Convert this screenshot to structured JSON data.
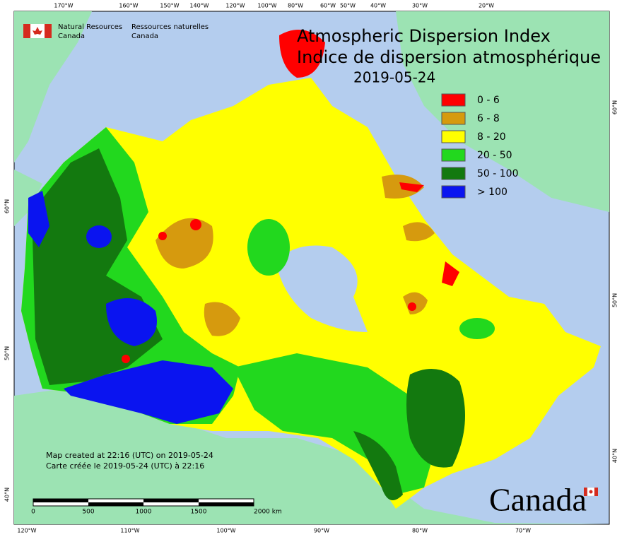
{
  "agency": {
    "en": [
      "Natural Resources",
      "Canada"
    ],
    "fr": [
      "Ressources naturelles",
      "Canada"
    ]
  },
  "title": {
    "line1": "Atmospheric Dispersion Index",
    "line2": "Indice de dispersion atmosphérique",
    "date": "2019-05-24"
  },
  "legend": {
    "items": [
      {
        "label": "0 - 6",
        "color": "#ff0000"
      },
      {
        "label": "6 - 8",
        "color": "#d69a0e"
      },
      {
        "label": "8 - 20",
        "color": "#ffff00"
      },
      {
        "label": "20 - 50",
        "color": "#22d81e"
      },
      {
        "label": "50 - 100",
        "color": "#13790f"
      },
      {
        "label": "> 100",
        "color": "#0a14f0"
      }
    ]
  },
  "graticule": {
    "top": [
      "170°W",
      "160°W",
      "150°W",
      "140°W",
      "120°W",
      "100°W",
      "80°W",
      "60°W",
      "50°W",
      "40°W",
      "30°W",
      "20°W"
    ],
    "bottom": [
      "120°W",
      "110°W",
      "100°W",
      "90°W",
      "80°W",
      "70°W"
    ],
    "left": [
      "60°N",
      "50°N",
      "40°N"
    ],
    "right": [
      "60°N",
      "50°N",
      "40°N"
    ]
  },
  "credits": {
    "created_en": "Map created at 22:16 (UTC) on 2019-05-24",
    "created_fr": "Carte créée le 2019-05-24 (UTC) à 22:16"
  },
  "scale_bar": {
    "labels": [
      "0",
      "500",
      "1000",
      "1500",
      "2000 km"
    ]
  },
  "wordmark": "Canada"
}
